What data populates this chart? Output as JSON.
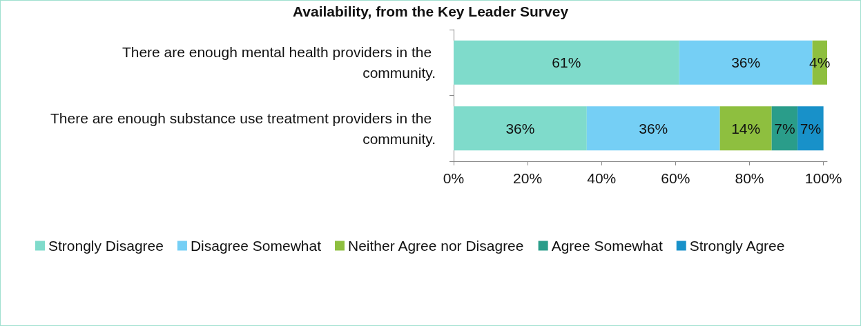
{
  "chart_data": {
    "type": "bar",
    "orientation": "horizontal",
    "stacked": true,
    "title": "Availability, from the Key Leader Survey",
    "categories": [
      "There are enough mental health providers in the community.",
      "There are enough substance use treatment providers in the community."
    ],
    "series": [
      {
        "name": "Strongly Disagree",
        "color": "#7fdbcb",
        "values": [
          61,
          36
        ],
        "value_labels": [
          "61%",
          "36%"
        ]
      },
      {
        "name": "Disagree Somewhat",
        "color": "#75cff5",
        "values": [
          36,
          36
        ],
        "value_labels": [
          "36%",
          "36%"
        ]
      },
      {
        "name": "Neither Agree nor Disagree",
        "color": "#8ebf3f",
        "values": [
          4,
          14
        ],
        "value_labels": [
          "4%",
          "14%"
        ]
      },
      {
        "name": "Agree Somewhat",
        "color": "#2a9d8a",
        "values": [
          null,
          7
        ],
        "value_labels": [
          null,
          "7%"
        ]
      },
      {
        "name": "Strongly Agree",
        "color": "#1891c9",
        "values": [
          null,
          7
        ],
        "value_labels": [
          null,
          "7%"
        ]
      }
    ],
    "xlim": [
      0,
      101
    ],
    "xticks": [
      {
        "value": 0,
        "label": "0%"
      },
      {
        "value": 20,
        "label": "20%"
      },
      {
        "value": 40,
        "label": "40%"
      },
      {
        "value": 60,
        "label": "60%"
      },
      {
        "value": 80,
        "label": "80%"
      },
      {
        "value": 100,
        "label": "100%"
      }
    ],
    "grid": false,
    "legend": "bottom"
  }
}
